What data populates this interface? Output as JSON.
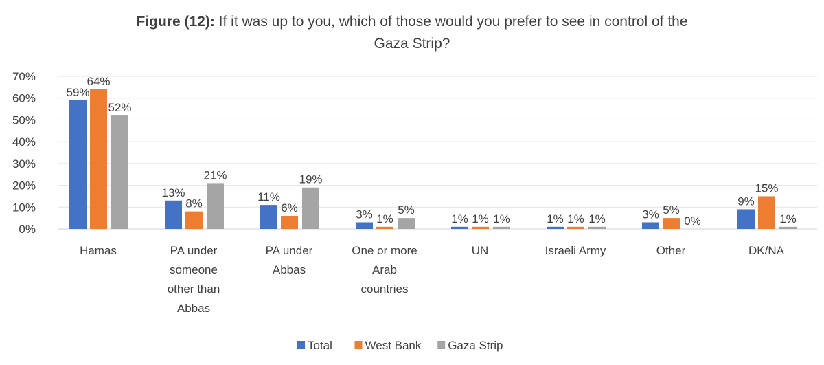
{
  "chart_data": {
    "type": "bar",
    "title_bold": "Figure (12):",
    "title_rest": " If it was up to you, which of those would you prefer to see in control of the",
    "title_line2": "Gaza Strip?",
    "categories": [
      [
        "Hamas"
      ],
      [
        "PA under",
        "someone",
        "other than",
        "Abbas"
      ],
      [
        "PA under",
        "Abbas"
      ],
      [
        "One or more",
        "Arab",
        "countries"
      ],
      [
        "UN"
      ],
      [
        "Israeli Army"
      ],
      [
        "Other"
      ],
      [
        "DK/NA"
      ]
    ],
    "series": [
      {
        "name": "Total",
        "color": "#4472C4",
        "values": [
          59,
          13,
          11,
          3,
          1,
          1,
          3,
          9
        ]
      },
      {
        "name": "West Bank",
        "color": "#ED7D31",
        "values": [
          64,
          8,
          6,
          1,
          1,
          1,
          5,
          15
        ]
      },
      {
        "name": "Gaza Strip",
        "color": "#A5A5A5",
        "values": [
          52,
          21,
          19,
          5,
          1,
          1,
          0,
          1
        ]
      }
    ],
    "yticks": [
      "0%",
      "10%",
      "20%",
      "30%",
      "40%",
      "50%",
      "60%",
      "70%"
    ],
    "ylim": [
      0,
      70
    ],
    "grid": true,
    "legend": "bottom"
  }
}
